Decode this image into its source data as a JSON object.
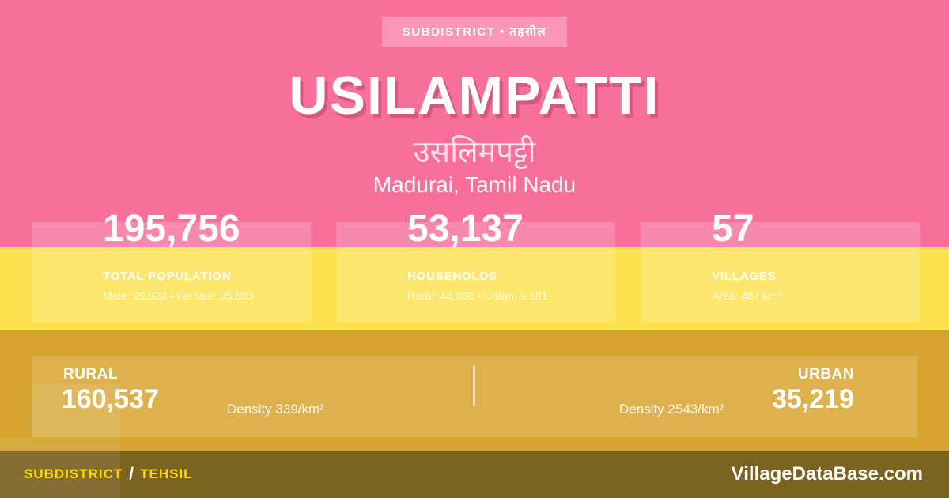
{
  "badge": {
    "label": "SUBDISTRICT • तहसील"
  },
  "header": {
    "title": "USILAMPATTI",
    "title_hindi": "उसलिमपट्टी",
    "location": "Madurai, Tamil Nadu"
  },
  "stats": [
    {
      "value": "195,756",
      "label": "TOTAL POPULATION",
      "detail": "Male: 99,923 • Female: 95,833"
    },
    {
      "value": "53,137",
      "label": "HOUSEHOLDS",
      "detail": "Rural: 44,036 • Urban: 9,101"
    },
    {
      "value": "57",
      "label": "VILLAGES",
      "detail": "Area: 487 km²"
    }
  ],
  "breakdown": {
    "rural": {
      "label": "RURAL",
      "value": "160,537",
      "density": "Density 339/km²"
    },
    "urban": {
      "label": "URBAN",
      "value": "35,219",
      "density": "Density 2543/km²"
    }
  },
  "footer": {
    "type_primary": "SUBDISTRICT",
    "type_separator": "/",
    "type_secondary": "TEHSIL",
    "site": "VillageDataBase.com"
  },
  "colors": {
    "pink_bg": "#f8709a",
    "yellow_band": "#fce14f",
    "gold_band": "#d7a52f",
    "footer_bar": "#7a6221",
    "title_shadow": "#d4587f",
    "footer_accent_yellow": "#ffd800",
    "text_white": "#ffffff"
  }
}
